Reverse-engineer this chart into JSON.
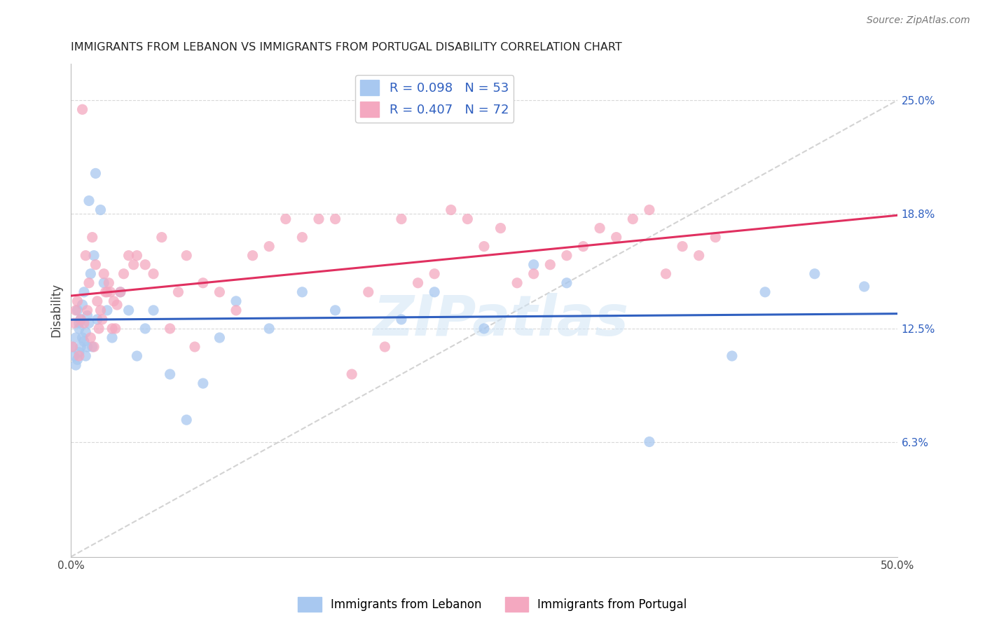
{
  "title": "IMMIGRANTS FROM LEBANON VS IMMIGRANTS FROM PORTUGAL DISABILITY CORRELATION CHART",
  "source": "Source: ZipAtlas.com",
  "ylabel": "Disability",
  "yticks": [
    6.3,
    12.5,
    18.8,
    25.0
  ],
  "ytick_labels": [
    "6.3%",
    "12.5%",
    "18.8%",
    "25.0%"
  ],
  "xlim": [
    0.0,
    50.0
  ],
  "ylim": [
    0.0,
    27.0
  ],
  "color_lebanon": "#a8c8f0",
  "color_portugal": "#f4a8c0",
  "line_color_lebanon": "#3060c0",
  "line_color_portugal": "#e03060",
  "watermark": "ZIPatlas",
  "lebanon_R": "0.098",
  "lebanon_N": "53",
  "portugal_R": "0.407",
  "portugal_N": "72",
  "lebanon_x": [
    0.1,
    0.2,
    0.3,
    0.3,
    0.4,
    0.4,
    0.5,
    0.5,
    0.5,
    0.6,
    0.6,
    0.7,
    0.7,
    0.8,
    0.8,
    0.9,
    0.9,
    1.0,
    1.0,
    1.1,
    1.1,
    1.2,
    1.3,
    1.4,
    1.5,
    1.6,
    1.8,
    2.0,
    2.2,
    2.5,
    3.0,
    3.5,
    4.0,
    4.5,
    5.0,
    6.0,
    7.0,
    8.0,
    9.0,
    10.0,
    12.0,
    14.0,
    16.0,
    20.0,
    22.0,
    25.0,
    28.0,
    30.0,
    35.0,
    40.0,
    42.0,
    45.0,
    48.0
  ],
  "lebanon_y": [
    11.5,
    11.0,
    12.0,
    10.5,
    10.8,
    13.5,
    11.2,
    12.5,
    12.8,
    11.5,
    13.0,
    12.0,
    13.8,
    11.8,
    14.5,
    12.3,
    11.0,
    11.5,
    13.2,
    12.8,
    19.5,
    15.5,
    11.5,
    16.5,
    21.0,
    13.0,
    19.0,
    15.0,
    13.5,
    12.0,
    14.5,
    13.5,
    11.0,
    12.5,
    13.5,
    10.0,
    7.5,
    9.5,
    12.0,
    14.0,
    12.5,
    14.5,
    13.5,
    13.0,
    14.5,
    12.5,
    16.0,
    15.0,
    6.3,
    11.0,
    14.5,
    15.5,
    14.8
  ],
  "portugal_x": [
    0.1,
    0.2,
    0.3,
    0.4,
    0.5,
    0.6,
    0.7,
    0.8,
    0.9,
    1.0,
    1.1,
    1.2,
    1.3,
    1.4,
    1.5,
    1.6,
    1.7,
    1.8,
    1.9,
    2.0,
    2.1,
    2.2,
    2.3,
    2.4,
    2.5,
    2.6,
    2.7,
    2.8,
    3.0,
    3.2,
    3.5,
    3.8,
    4.0,
    4.5,
    5.0,
    5.5,
    6.0,
    6.5,
    7.0,
    7.5,
    8.0,
    9.0,
    10.0,
    11.0,
    12.0,
    13.0,
    14.0,
    15.0,
    16.0,
    17.0,
    18.0,
    19.0,
    20.0,
    21.0,
    22.0,
    23.0,
    24.0,
    25.0,
    26.0,
    27.0,
    28.0,
    29.0,
    30.0,
    31.0,
    32.0,
    33.0,
    34.0,
    35.0,
    36.0,
    37.0,
    38.0,
    39.0
  ],
  "portugal_y": [
    11.5,
    12.8,
    13.5,
    14.0,
    11.0,
    13.0,
    24.5,
    12.8,
    16.5,
    13.5,
    15.0,
    12.0,
    17.5,
    11.5,
    16.0,
    14.0,
    12.5,
    13.5,
    13.0,
    15.5,
    14.5,
    14.5,
    15.0,
    14.5,
    12.5,
    14.0,
    12.5,
    13.8,
    14.5,
    15.5,
    16.5,
    16.0,
    16.5,
    16.0,
    15.5,
    17.5,
    12.5,
    14.5,
    16.5,
    11.5,
    15.0,
    14.5,
    13.5,
    16.5,
    17.0,
    18.5,
    17.5,
    18.5,
    18.5,
    10.0,
    14.5,
    11.5,
    18.5,
    15.0,
    15.5,
    19.0,
    18.5,
    17.0,
    18.0,
    15.0,
    15.5,
    16.0,
    16.5,
    17.0,
    18.0,
    17.5,
    18.5,
    19.0,
    15.5,
    17.0,
    16.5,
    17.5
  ]
}
